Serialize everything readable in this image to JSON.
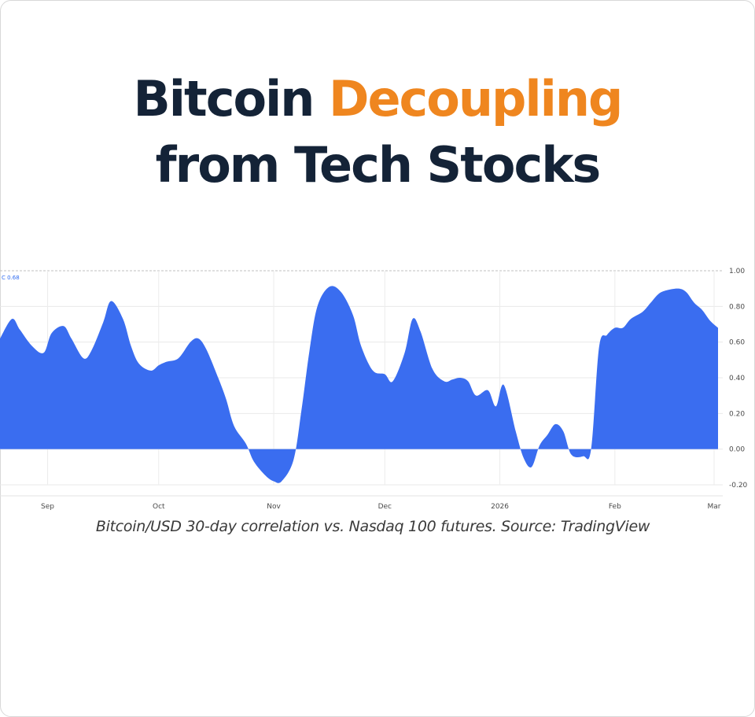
{
  "header": {
    "title_part1": "Bitcoin",
    "title_accent": "Decoupling",
    "title_line2": "from Tech Stocks",
    "accent_color": "#ef861f",
    "text_color": "#142337"
  },
  "caption": "Bitcoin/USD 30-day correlation vs. Nasdaq 100 futures. Source: TradingView",
  "chart_data": {
    "type": "area",
    "title": "",
    "xlabel": "",
    "ylabel": "",
    "legend_label": "C 0.68",
    "fill_color": "#3a6df0",
    "ylim": [
      -0.2,
      1.0
    ],
    "yticks": [
      1.0,
      0.8,
      0.6,
      0.4,
      0.2,
      0.0,
      -0.2
    ],
    "ytick_labels": [
      "1.00",
      "0.80",
      "0.60",
      "0.40",
      "0.20",
      "0.00",
      "-0.20"
    ],
    "x_range": [
      0,
      181
    ],
    "xticks": [
      {
        "x": 12,
        "label": "Sep"
      },
      {
        "x": 40,
        "label": "Oct"
      },
      {
        "x": 69,
        "label": "Nov"
      },
      {
        "x": 97,
        "label": "Dec"
      },
      {
        "x": 126,
        "label": "2026"
      },
      {
        "x": 155,
        "label": "Feb"
      },
      {
        "x": 180,
        "label": "Mar"
      }
    ],
    "x": [
      0,
      3,
      5,
      8,
      11,
      13,
      16,
      18,
      21,
      23,
      26,
      28,
      31,
      33,
      35,
      38,
      40,
      42,
      45,
      48,
      50,
      52,
      55,
      57,
      59,
      62,
      64,
      67,
      69,
      71,
      74,
      76,
      78,
      80,
      83,
      86,
      89,
      91,
      94,
      97,
      99,
      102,
      104,
      106,
      109,
      112,
      114,
      116,
      118,
      120,
      123,
      125,
      127,
      130,
      132,
      134,
      136,
      138,
      140,
      142,
      144,
      147,
      149,
      151,
      153,
      155,
      157,
      159,
      162,
      164,
      166,
      168,
      171,
      173,
      175,
      177,
      179,
      181
    ],
    "values": [
      0.62,
      0.73,
      0.67,
      0.58,
      0.54,
      0.65,
      0.69,
      0.62,
      0.51,
      0.55,
      0.71,
      0.83,
      0.73,
      0.58,
      0.48,
      0.44,
      0.47,
      0.49,
      0.51,
      0.6,
      0.62,
      0.56,
      0.4,
      0.28,
      0.13,
      0.03,
      -0.07,
      -0.15,
      -0.18,
      -0.18,
      -0.06,
      0.22,
      0.55,
      0.8,
      0.91,
      0.88,
      0.75,
      0.58,
      0.44,
      0.42,
      0.38,
      0.54,
      0.73,
      0.66,
      0.45,
      0.38,
      0.39,
      0.4,
      0.38,
      0.3,
      0.33,
      0.24,
      0.36,
      0.1,
      -0.05,
      -0.1,
      0.02,
      0.08,
      0.14,
      0.1,
      -0.03,
      -0.04,
      0.0,
      0.57,
      0.64,
      0.68,
      0.68,
      0.73,
      0.77,
      0.82,
      0.87,
      0.89,
      0.9,
      0.88,
      0.82,
      0.78,
      0.72,
      0.68
    ]
  }
}
